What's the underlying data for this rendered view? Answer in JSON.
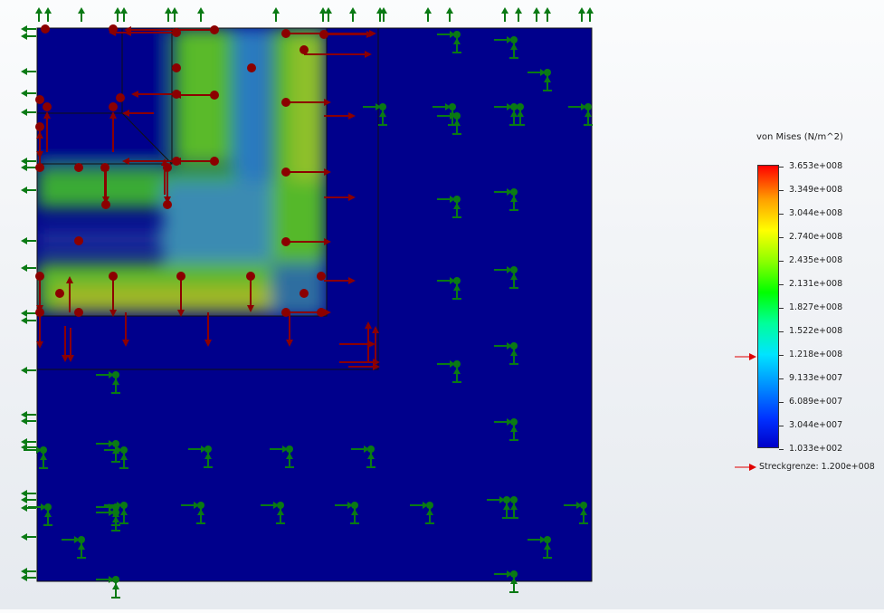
{
  "legend": {
    "title": "von Mises (N/m^2)",
    "ticks": [
      "3.653e+008",
      "3.349e+008",
      "3.044e+008",
      "2.740e+008",
      "2.435e+008",
      "2.131e+008",
      "1.827e+008",
      "1.522e+008",
      "1.218e+008",
      "9.133e+007",
      "6.089e+007",
      "3.044e+007",
      "1.033e+002"
    ],
    "yield_label": "Streckgrenze: 1.200e+008",
    "yield_arrow_color": "#e00000"
  },
  "colors": {
    "fixture": "#0a7a14",
    "load": "#8b0000",
    "background_stress": "#00008c"
  },
  "icons": {
    "fixture": "fixture-arrow-icon",
    "load": "load-arrow-icon",
    "yield": "yield-indicator-icon"
  }
}
